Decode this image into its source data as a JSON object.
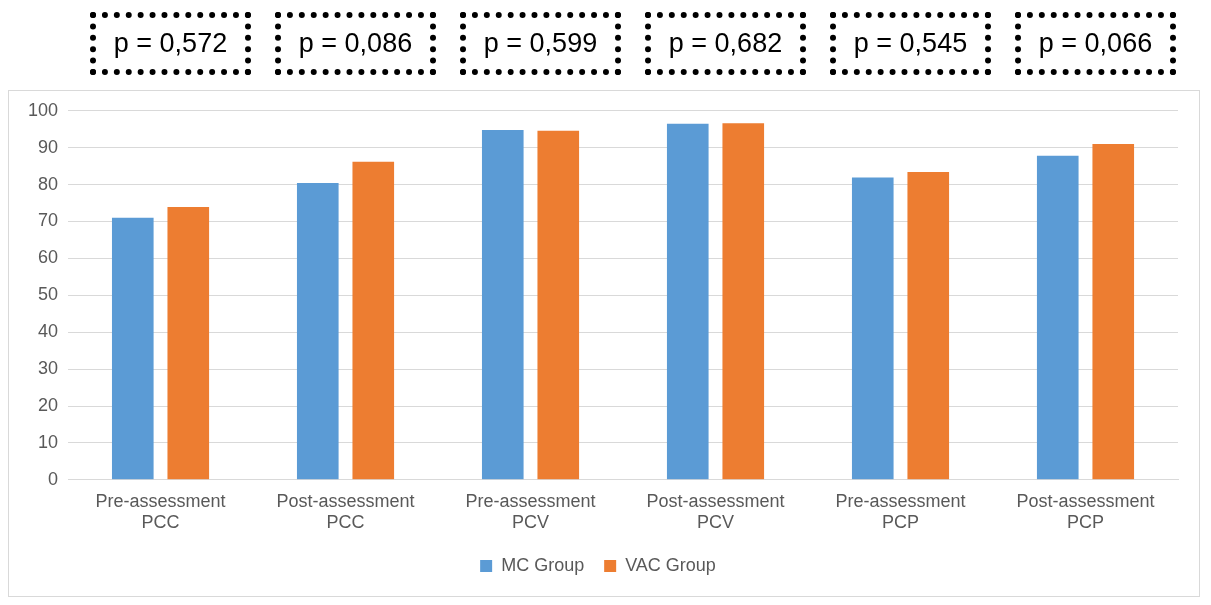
{
  "chart_data": {
    "type": "bar",
    "categories": [
      "Pre-assessment PCC",
      "Post-assessment PCC",
      "Pre-assessment PCV",
      "Post-assessment PCV",
      "Pre-assessment PCP",
      "Post-assessment PCP"
    ],
    "series": [
      {
        "name": "MC Group",
        "color": "#5b9bd5",
        "values": [
          71,
          80.4,
          94.8,
          96.5,
          81.9,
          87.8
        ]
      },
      {
        "name": "VAC Group",
        "color": "#ed7d31",
        "values": [
          73.9,
          86.2,
          94.6,
          96.6,
          83.4,
          91
        ]
      }
    ],
    "ylim": [
      0,
      100
    ],
    "yticks": [
      0,
      10,
      20,
      30,
      40,
      50,
      60,
      70,
      80,
      90,
      100
    ],
    "grid": "y",
    "legend": "bottom",
    "annotations": [
      "p = 0,572",
      "p = 0,086",
      "p = 0,599",
      "p = 0,682",
      "p = 0,545",
      "p = 0,066"
    ]
  }
}
